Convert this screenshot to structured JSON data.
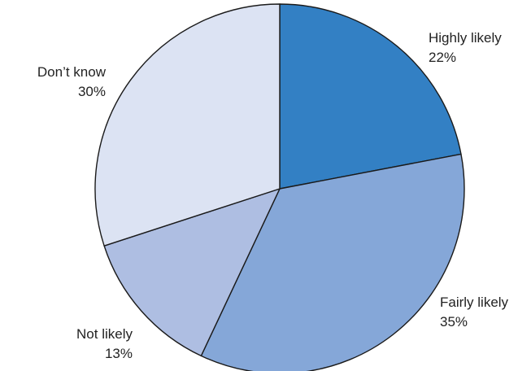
{
  "chart_data": {
    "type": "pie",
    "title": "",
    "categories": [
      "Highly likely",
      "Fairly likely",
      "Not likely",
      "Don’t know"
    ],
    "values": [
      22,
      35,
      13,
      30
    ],
    "value_labels": [
      "22%",
      "35%",
      "13%",
      "30%"
    ],
    "unit": "%",
    "colors": [
      "#3380c4",
      "#85a7d8",
      "#aebee2",
      "#dce3f3"
    ],
    "edge_color": "#1a1a1a",
    "start_angle_deg": 0,
    "direction": "clockwise",
    "legend": "none"
  }
}
